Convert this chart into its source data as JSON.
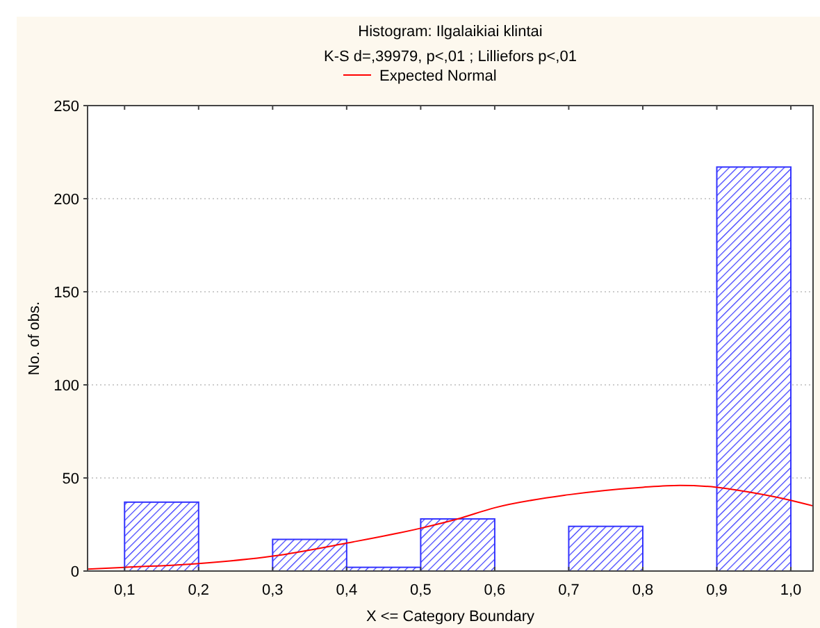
{
  "chart_data": {
    "type": "histogram",
    "title": "Histogram: Ilgalaikiai klintai",
    "subtitle": "K-S d=,39979, p<,01 ; Lilliefors p<,01",
    "xlabel": "X <= Category Boundary",
    "ylabel": "No. of obs.",
    "bins": [
      0.1,
      0.2,
      0.3,
      0.4,
      0.5,
      0.6,
      0.7,
      0.8,
      0.9,
      1.0
    ],
    "values": [
      37,
      0,
      17,
      2,
      28,
      0,
      24,
      0,
      217
    ],
    "color": "#3333ff",
    "series": [
      {
        "type": "line",
        "name": "Expected Normal",
        "color": "#ff0000",
        "x": [
          0.05,
          0.1,
          0.2,
          0.3,
          0.4,
          0.5,
          0.55,
          0.6,
          0.7,
          0.8,
          0.85,
          0.9,
          0.95,
          1.0,
          1.03
        ],
        "values": [
          1,
          2,
          4,
          8,
          15,
          23,
          28,
          34,
          41,
          45,
          46,
          45,
          42,
          38,
          35
        ]
      }
    ],
    "xlim": [
      0.05,
      1.03
    ],
    "ylim": [
      0,
      250
    ],
    "xticks": [
      {
        "value": 0.1,
        "label": "0,1"
      },
      {
        "value": 0.2,
        "label": "0,2"
      },
      {
        "value": 0.3,
        "label": "0,3"
      },
      {
        "value": 0.4,
        "label": "0,4"
      },
      {
        "value": 0.5,
        "label": "0,5"
      },
      {
        "value": 0.6,
        "label": "0,6"
      },
      {
        "value": 0.7,
        "label": "0,7"
      },
      {
        "value": 0.8,
        "label": "0,8"
      },
      {
        "value": 0.9,
        "label": "0,9"
      },
      {
        "value": 1.0,
        "label": "1,0"
      }
    ],
    "yticks": [
      0,
      50,
      100,
      150,
      200,
      250
    ],
    "grid": "y",
    "legend": "top",
    "marker": "none",
    "line_style": "solid"
  }
}
